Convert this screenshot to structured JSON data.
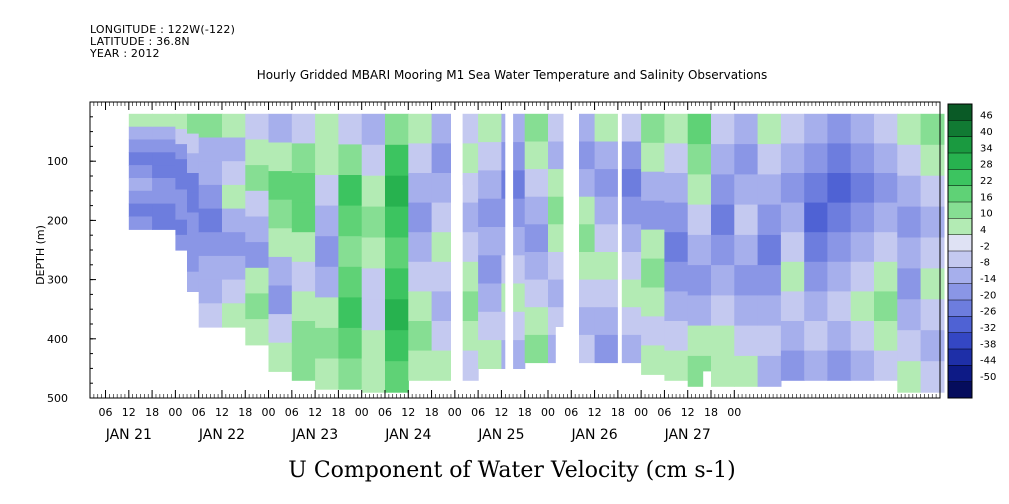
{
  "header": {
    "longitude": "LONGITUDE : 122W(-122)",
    "latitude": "LATITUDE : 36.8N",
    "year": "YEAR : 2012"
  },
  "chart_data": {
    "type": "heatmap",
    "title": "Hourly Gridded MBARI Mooring M1 Sea Water Temperature and Salinity Observations",
    "subtitle": "U Component of Water Velocity (cm s-1)",
    "ylabel": "DEPTH (m)",
    "xlabel": "",
    "ylim": [
      500,
      0
    ],
    "yticks": [
      100,
      200,
      300,
      400,
      500
    ],
    "y_axis_inverted": true,
    "x_range_hours": [
      -10,
      209
    ],
    "x_tick_hours": [
      "06",
      "12",
      "18",
      "00",
      "06",
      "12",
      "18",
      "00",
      "06",
      "12",
      "18",
      "00",
      "06",
      "12",
      "18",
      "00",
      "06",
      "12",
      "18",
      "00",
      "06",
      "12",
      "18",
      "00",
      "06",
      "12",
      "18",
      "00"
    ],
    "day_labels": [
      "JAN 21",
      "JAN 22",
      "JAN 23",
      "JAN 24",
      "JAN 25",
      "JAN 26",
      "JAN 27"
    ],
    "colorbar_labels": [
      "46",
      "40",
      "34",
      "28",
      "22",
      "16",
      "10",
      "4",
      "-2",
      "-8",
      "-14",
      "-20",
      "-26",
      "-32",
      "-38",
      "-44",
      "-50"
    ],
    "colorbar_colors": [
      "#0a5a26",
      "#117a33",
      "#1a9a40",
      "#27b24f",
      "#3cc460",
      "#5fd276",
      "#86de93",
      "#b3ebb4",
      "#dfe2f4",
      "#c4c9f0",
      "#a6afec",
      "#8a96e6",
      "#6d7dde",
      "#4f62d4",
      "#3447c4",
      "#1e2fa8",
      "#0d1a86",
      "#050c5c"
    ],
    "columns": [
      {
        "h": 0,
        "top": 20,
        "bottom": 215,
        "u": [
          4,
          -8,
          -14,
          -20,
          -14,
          -8,
          -14,
          -20,
          -14
        ]
      },
      {
        "h": 6,
        "top": 20,
        "bottom": 215,
        "u": [
          6,
          -8,
          -14,
          -20,
          -20,
          -14,
          -14,
          -20,
          -20
        ]
      },
      {
        "h": 12,
        "top": 20,
        "bottom": 250,
        "u": [
          8,
          -2,
          -14,
          -20,
          -20,
          -14,
          -14,
          -20,
          -14
        ]
      },
      {
        "h": 15,
        "top": 20,
        "bottom": 320,
        "u": [
          10,
          -2,
          -8,
          -20,
          -20,
          -14,
          -14,
          -14,
          -8
        ]
      },
      {
        "h": 18,
        "top": 20,
        "bottom": 380,
        "u": [
          10,
          -8,
          -8,
          -14,
          -20,
          -14,
          -8,
          -8,
          -2
        ]
      },
      {
        "h": 24,
        "top": 20,
        "bottom": 380,
        "u": [
          4,
          -8,
          -2,
          4,
          -8,
          -14,
          -8,
          -2,
          4
        ]
      },
      {
        "h": 30,
        "top": 20,
        "bottom": 410,
        "u": [
          -2,
          4,
          10,
          -2,
          -8,
          -14,
          4,
          10,
          4
        ]
      },
      {
        "h": 36,
        "top": 20,
        "bottom": 455,
        "u": [
          -8,
          4,
          16,
          10,
          4,
          -8,
          -14,
          -2,
          4
        ]
      },
      {
        "h": 42,
        "top": 20,
        "bottom": 470,
        "u": [
          -2,
          10,
          16,
          16,
          4,
          -2,
          4,
          10,
          10
        ]
      },
      {
        "h": 48,
        "top": 20,
        "bottom": 485,
        "u": [
          4,
          4,
          -2,
          -8,
          -14,
          -8,
          4,
          10,
          4
        ]
      },
      {
        "h": 54,
        "top": 20,
        "bottom": 485,
        "u": [
          -2,
          10,
          22,
          16,
          10,
          16,
          22,
          16,
          10
        ]
      },
      {
        "h": 60,
        "top": 20,
        "bottom": 490,
        "u": [
          -8,
          -2,
          4,
          10,
          4,
          -2,
          -2,
          4,
          4
        ]
      },
      {
        "h": 66,
        "top": 20,
        "bottom": 490,
        "u": [
          10,
          22,
          28,
          22,
          16,
          22,
          28,
          22,
          16
        ]
      },
      {
        "h": 72,
        "top": 20,
        "bottom": 470,
        "u": [
          4,
          -2,
          -8,
          -14,
          -8,
          -2,
          4,
          10,
          4
        ]
      },
      {
        "h": 78,
        "top": 20,
        "bottom": 470,
        "u": [
          -8,
          -14,
          -8,
          -2,
          4,
          -2,
          -8,
          -2,
          4
        ]
      },
      {
        "h": 84,
        "top": 20,
        "bottom": 470,
        "u": [
          -2,
          4,
          -2,
          -8,
          -2,
          4,
          10,
          4,
          -2
        ]
      },
      {
        "h": 90,
        "top": 20,
        "bottom": 450,
        "u": [
          4,
          -2,
          -8,
          -14,
          -8,
          -14,
          -8,
          -2,
          4
        ]
      },
      {
        "h": 96,
        "top": 20,
        "bottom": 450,
        "u": [
          -8,
          -14,
          -20,
          -14,
          -8,
          -2,
          4,
          -2,
          -8
        ]
      },
      {
        "h": 102,
        "top": 20,
        "bottom": 440,
        "u": [
          10,
          4,
          -2,
          -8,
          -14,
          -8,
          -2,
          4,
          10
        ]
      },
      {
        "h": 108,
        "top": 20,
        "bottom": 440,
        "u": [
          -2,
          -8,
          4,
          10,
          4,
          -2,
          -8,
          -2,
          -8
        ]
      },
      {
        "h": 114,
        "top": 20,
        "bottom": 440,
        "u": [
          -8,
          -14,
          -8,
          4,
          10,
          4,
          -2,
          -8,
          -2
        ]
      },
      {
        "h": 120,
        "top": 20,
        "bottom": 440,
        "u": [
          4,
          -8,
          -14,
          -8,
          -2,
          4,
          -2,
          -8,
          -14
        ]
      },
      {
        "h": 126,
        "top": 20,
        "bottom": 440,
        "u": [
          -2,
          -14,
          -20,
          -14,
          -8,
          -2,
          4,
          -2,
          -8
        ]
      },
      {
        "h": 132,
        "top": 20,
        "bottom": 460,
        "u": [
          10,
          4,
          -8,
          -14,
          4,
          10,
          4,
          -2,
          4
        ]
      },
      {
        "h": 138,
        "top": 20,
        "bottom": 470,
        "u": [
          4,
          -2,
          -8,
          -14,
          -20,
          -14,
          -8,
          -2,
          4
        ]
      },
      {
        "h": 144,
        "top": 20,
        "bottom": 480,
        "u": [
          16,
          10,
          4,
          -2,
          -8,
          -14,
          -8,
          4,
          10
        ]
      },
      {
        "h": 150,
        "top": 20,
        "bottom": 480,
        "u": [
          -2,
          -8,
          -14,
          -20,
          -14,
          -8,
          -2,
          4,
          4
        ]
      },
      {
        "h": 156,
        "top": 20,
        "bottom": 480,
        "u": [
          -8,
          -14,
          -8,
          -2,
          -8,
          -14,
          -8,
          -2,
          4
        ]
      },
      {
        "h": 162,
        "top": 20,
        "bottom": 480,
        "u": [
          4,
          -2,
          -8,
          -14,
          -20,
          -14,
          -8,
          -2,
          -8
        ]
      },
      {
        "h": 168,
        "top": 20,
        "bottom": 470,
        "u": [
          -2,
          -8,
          -14,
          -8,
          -2,
          4,
          -2,
          -8,
          -14
        ]
      },
      {
        "h": 174,
        "top": 20,
        "bottom": 470,
        "u": [
          -8,
          -14,
          -20,
          -26,
          -20,
          -14,
          -8,
          -2,
          -8
        ]
      },
      {
        "h": 180,
        "top": 20,
        "bottom": 470,
        "u": [
          -14,
          -20,
          -26,
          -20,
          -14,
          -8,
          -2,
          -8,
          -14
        ]
      },
      {
        "h": 186,
        "top": 20,
        "bottom": 470,
        "u": [
          -8,
          -14,
          -20,
          -14,
          -8,
          -2,
          4,
          -2,
          -8
        ]
      },
      {
        "h": 192,
        "top": 20,
        "bottom": 470,
        "u": [
          -2,
          -8,
          -14,
          -8,
          -2,
          4,
          10,
          4,
          -2
        ]
      },
      {
        "h": 198,
        "top": 20,
        "bottom": 490,
        "u": [
          4,
          -2,
          -8,
          -14,
          -8,
          -14,
          -8,
          -2,
          4
        ]
      },
      {
        "h": 204,
        "top": 20,
        "bottom": 490,
        "u": [
          10,
          4,
          -2,
          -8,
          -2,
          4,
          -2,
          -8,
          -2
        ]
      }
    ],
    "data_gaps_hours": [
      [
        83,
        86
      ],
      [
        97,
        99
      ],
      [
        112,
        116
      ],
      [
        126,
        127
      ]
    ],
    "depth_gaps": [
      {
        "h0": 83,
        "h1": 86,
        "top": 140,
        "bottom": 500
      },
      {
        "h0": 110,
        "h1": 114,
        "top": 380,
        "bottom": 500
      },
      {
        "h0": 148,
        "h1": 150,
        "top": 455,
        "bottom": 500
      }
    ]
  }
}
